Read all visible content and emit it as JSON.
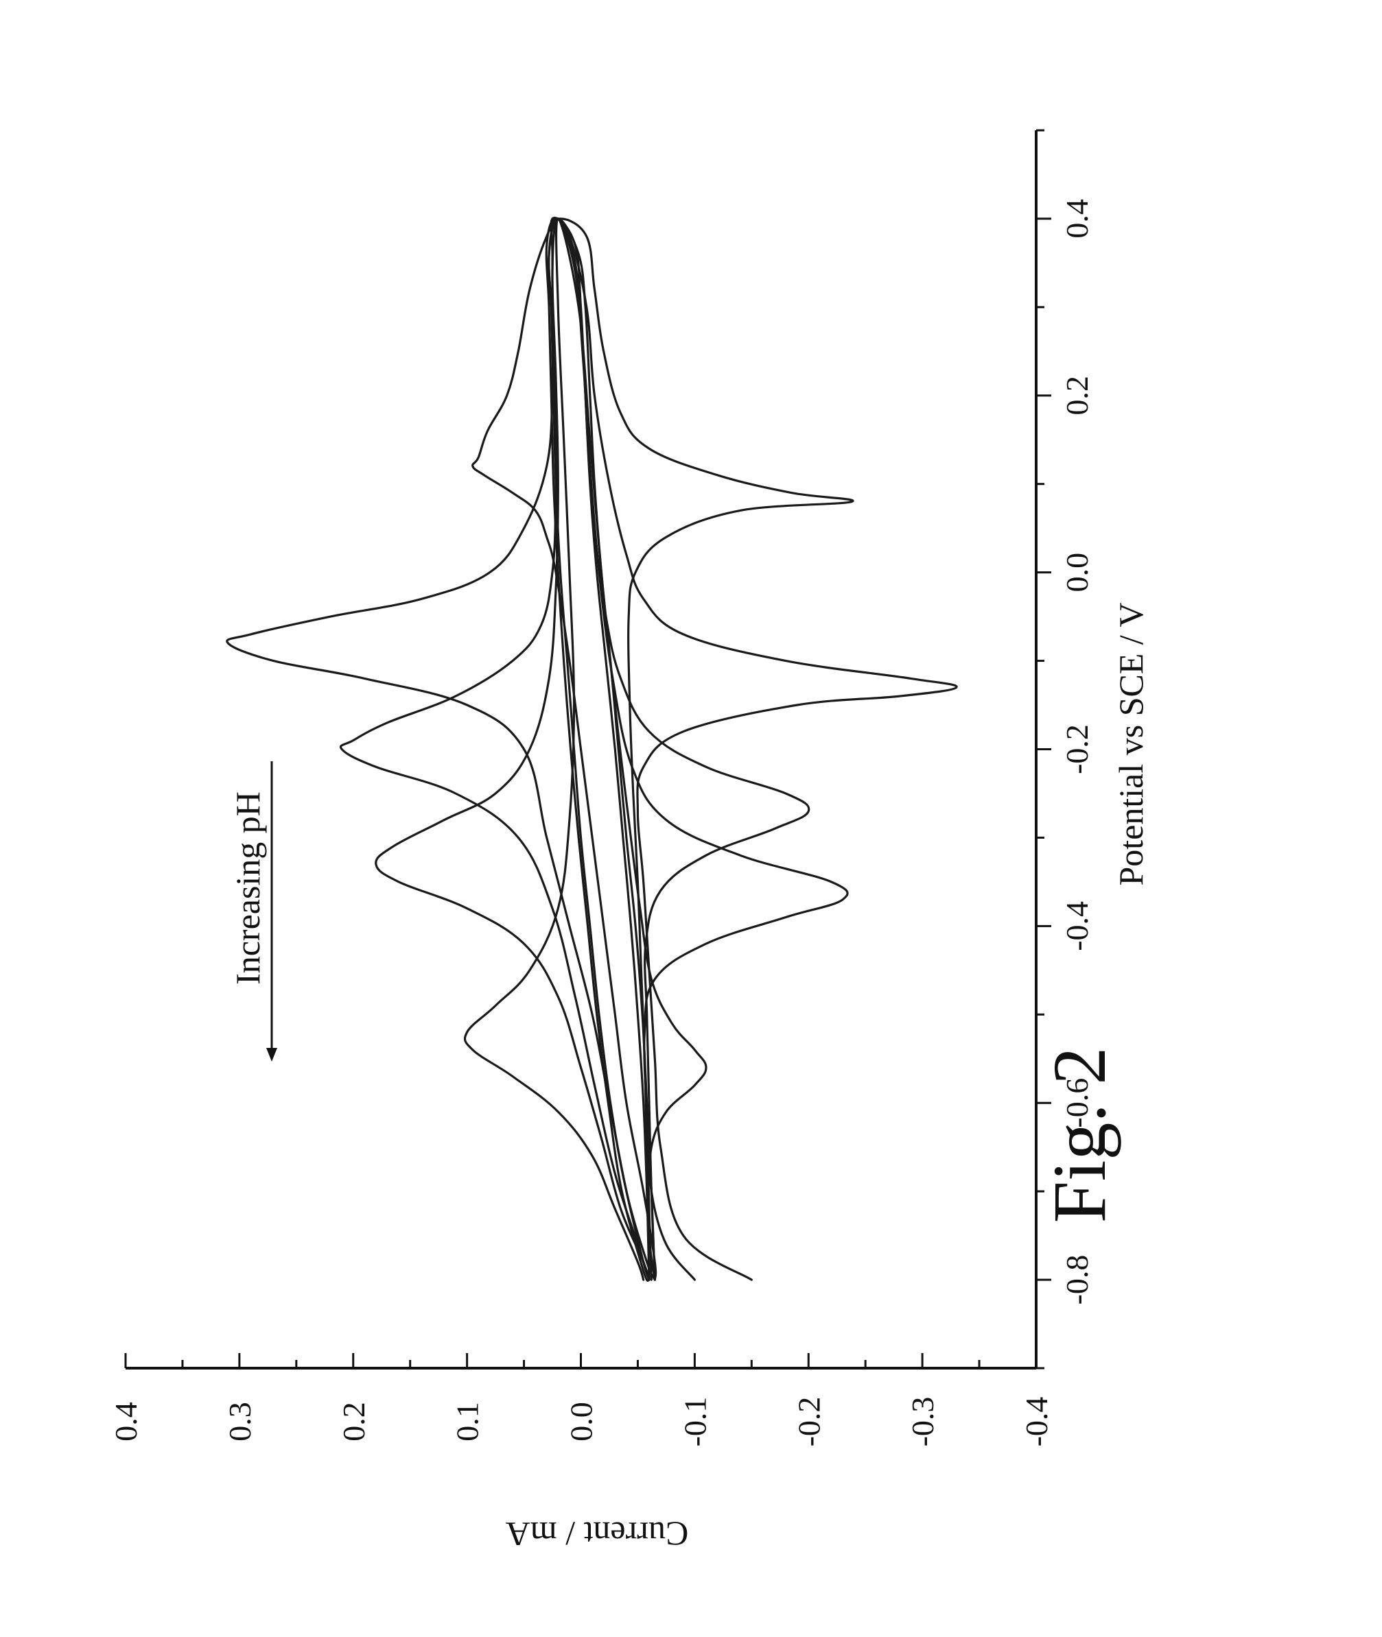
{
  "figure_label": "Fig. 2",
  "chart_data": {
    "type": "line",
    "title": "",
    "xlabel": "Potential vs SCE / V",
    "ylabel": "Current / mA",
    "xlim": [
      -0.9,
      0.5
    ],
    "ylim": [
      -0.4,
      0.4
    ],
    "x_ticks": [
      "-0.8",
      "-0.6",
      "-0.4",
      "-0.2",
      "0.0",
      "0.2",
      "0.4"
    ],
    "y_ticks": [
      "0.4",
      "0.3",
      "0.2",
      "0.1",
      "0.0",
      "-0.1",
      "-0.2",
      "-0.3",
      "-0.4"
    ],
    "grid": false,
    "legend": "none",
    "orientation": "rotated 90° counter-clockwise",
    "annotation": "Increasing pH",
    "series": [
      {
        "cathodic_peak": {
          "x": 0.08,
          "y": -0.238
        },
        "anodic_peak": {
          "x": 0.12,
          "y": 0.095
        },
        "x": [
          -0.8,
          -0.75,
          -0.65,
          -0.55,
          -0.45,
          -0.35,
          -0.25,
          -0.15,
          -0.05,
          0.0,
          0.04,
          0.07,
          0.08,
          0.09,
          0.11,
          0.14,
          0.18,
          0.25,
          0.32,
          0.38,
          0.4,
          0.38,
          0.32,
          0.25,
          0.2,
          0.16,
          0.13,
          0.12,
          0.11,
          0.09,
          0.07,
          0.04,
          0.0,
          -0.1,
          -0.2,
          -0.3,
          -0.4,
          -0.5,
          -0.6,
          -0.7,
          -0.78,
          -0.8
        ],
        "y": [
          -0.065,
          -0.06,
          -0.058,
          -0.056,
          -0.053,
          -0.05,
          -0.046,
          -0.043,
          -0.042,
          -0.048,
          -0.075,
          -0.14,
          -0.238,
          -0.185,
          -0.12,
          -0.06,
          -0.035,
          -0.02,
          -0.012,
          -0.005,
          0.018,
          0.03,
          0.045,
          0.055,
          0.065,
          0.082,
          0.09,
          0.095,
          0.085,
          0.06,
          0.04,
          0.03,
          0.022,
          0.01,
          0.0,
          -0.01,
          -0.02,
          -0.03,
          -0.04,
          -0.055,
          -0.065,
          -0.065
        ]
      },
      {
        "cathodic_peak": {
          "x": -0.13,
          "y": -0.33
        },
        "anodic_peak": {
          "x": -0.08,
          "y": 0.31
        },
        "x": [
          -0.8,
          -0.75,
          -0.65,
          -0.55,
          -0.45,
          -0.35,
          -0.27,
          -0.22,
          -0.18,
          -0.15,
          -0.14,
          -0.13,
          -0.12,
          -0.1,
          -0.07,
          -0.03,
          0.02,
          0.1,
          0.2,
          0.3,
          0.38,
          0.4,
          0.36,
          0.28,
          0.2,
          0.12,
          0.05,
          0.0,
          -0.03,
          -0.05,
          -0.07,
          -0.08,
          -0.1,
          -0.12,
          -0.15,
          -0.2,
          -0.3,
          -0.4,
          -0.5,
          -0.6,
          -0.7,
          -0.78,
          -0.8
        ],
        "y": [
          -0.15,
          -0.09,
          -0.07,
          -0.065,
          -0.06,
          -0.055,
          -0.05,
          -0.055,
          -0.09,
          -0.19,
          -0.28,
          -0.33,
          -0.29,
          -0.18,
          -0.09,
          -0.055,
          -0.04,
          -0.025,
          -0.012,
          -0.005,
          0.01,
          0.025,
          0.025,
          0.025,
          0.025,
          0.03,
          0.05,
          0.08,
          0.14,
          0.22,
          0.29,
          0.31,
          0.27,
          0.19,
          0.1,
          0.05,
          0.03,
          0.01,
          -0.01,
          -0.025,
          -0.04,
          -0.055,
          -0.06
        ]
      },
      {
        "cathodic_peak": {
          "x": -0.27,
          "y": -0.2
        },
        "anodic_peak": {
          "x": -0.2,
          "y": 0.21
        },
        "x": [
          -0.8,
          -0.7,
          -0.6,
          -0.5,
          -0.42,
          -0.36,
          -0.32,
          -0.29,
          -0.27,
          -0.25,
          -0.22,
          -0.18,
          -0.12,
          -0.05,
          0.05,
          0.15,
          0.25,
          0.35,
          0.4,
          0.36,
          0.28,
          0.18,
          0.08,
          0.0,
          -0.06,
          -0.1,
          -0.14,
          -0.17,
          -0.19,
          -0.2,
          -0.22,
          -0.25,
          -0.3,
          -0.38,
          -0.48,
          -0.58,
          -0.68,
          -0.76,
          -0.8
        ],
        "y": [
          -0.065,
          -0.062,
          -0.06,
          -0.058,
          -0.057,
          -0.07,
          -0.11,
          -0.17,
          -0.2,
          -0.18,
          -0.11,
          -0.06,
          -0.035,
          -0.022,
          -0.012,
          -0.006,
          -0.002,
          0.005,
          0.02,
          0.028,
          0.025,
          0.022,
          0.022,
          0.025,
          0.035,
          0.06,
          0.11,
          0.17,
          0.2,
          0.21,
          0.18,
          0.11,
          0.055,
          0.025,
          0.005,
          -0.012,
          -0.03,
          -0.05,
          -0.06
        ]
      },
      {
        "cathodic_peak": {
          "x": -0.37,
          "y": -0.23
        },
        "anodic_peak": {
          "x": -0.33,
          "y": 0.18
        },
        "x": [
          -0.8,
          -0.72,
          -0.62,
          -0.52,
          -0.46,
          -0.42,
          -0.39,
          -0.37,
          -0.35,
          -0.32,
          -0.28,
          -0.22,
          -0.12,
          0.0,
          0.12,
          0.24,
          0.34,
          0.4,
          0.34,
          0.22,
          0.1,
          -0.02,
          -0.12,
          -0.2,
          -0.25,
          -0.28,
          -0.31,
          -0.33,
          -0.35,
          -0.38,
          -0.42,
          -0.48,
          -0.56,
          -0.64,
          -0.72,
          -0.78,
          -0.8
        ],
        "y": [
          -0.062,
          -0.06,
          -0.058,
          -0.056,
          -0.065,
          -0.11,
          -0.18,
          -0.23,
          -0.22,
          -0.14,
          -0.075,
          -0.045,
          -0.028,
          -0.016,
          -0.008,
          -0.002,
          0.005,
          0.02,
          0.025,
          0.022,
          0.02,
          0.022,
          0.028,
          0.045,
          0.075,
          0.12,
          0.165,
          0.18,
          0.16,
          0.1,
          0.05,
          0.02,
          0.0,
          -0.018,
          -0.035,
          -0.055,
          -0.06
        ]
      },
      {
        "cathodic_peak": {
          "x": -0.56,
          "y": -0.11
        },
        "anodic_peak": {
          "x": -0.52,
          "y": 0.1
        },
        "x": [
          -0.8,
          -0.76,
          -0.7,
          -0.65,
          -0.61,
          -0.58,
          -0.56,
          -0.54,
          -0.51,
          -0.46,
          -0.38,
          -0.28,
          -0.15,
          0.0,
          0.15,
          0.3,
          0.4,
          0.3,
          0.15,
          0.0,
          -0.15,
          -0.28,
          -0.38,
          -0.45,
          -0.49,
          -0.52,
          -0.54,
          -0.57,
          -0.61,
          -0.66,
          -0.72,
          -0.78,
          -0.8
        ],
        "y": [
          -0.1,
          -0.075,
          -0.062,
          -0.062,
          -0.075,
          -0.1,
          -0.11,
          -0.1,
          -0.08,
          -0.062,
          -0.052,
          -0.042,
          -0.03,
          -0.018,
          -0.008,
          0.002,
          0.02,
          0.02,
          0.015,
          0.01,
          0.006,
          0.01,
          0.02,
          0.045,
          0.075,
          0.1,
          0.095,
          0.06,
          0.02,
          -0.01,
          -0.03,
          -0.05,
          -0.055
        ]
      },
      {
        "x": [
          -0.8,
          -0.7,
          -0.6,
          -0.5,
          -0.4,
          -0.3,
          -0.2,
          -0.1,
          0.0,
          0.1,
          0.2,
          0.3,
          0.36,
          0.4,
          0.36,
          0.3,
          0.2,
          0.1,
          0.0,
          -0.1,
          -0.2,
          -0.3,
          -0.4,
          -0.5,
          -0.6,
          -0.7,
          -0.78,
          -0.8
        ],
        "y": [
          -0.065,
          -0.062,
          -0.058,
          -0.054,
          -0.048,
          -0.04,
          -0.033,
          -0.026,
          -0.018,
          -0.012,
          -0.008,
          -0.004,
          0.002,
          0.02,
          0.028,
          0.026,
          0.024,
          0.022,
          0.018,
          0.012,
          0.006,
          0.0,
          -0.008,
          -0.016,
          -0.026,
          -0.04,
          -0.058,
          -0.065
        ]
      },
      {
        "x": [
          -0.8,
          -0.7,
          -0.6,
          -0.5,
          -0.4,
          -0.3,
          -0.2,
          -0.1,
          0.0,
          0.1,
          0.2,
          0.3,
          0.37,
          0.4,
          0.37,
          0.3,
          0.2,
          0.1,
          0.0,
          -0.1,
          -0.2,
          -0.3,
          -0.4,
          -0.5,
          -0.6,
          -0.7,
          -0.79,
          -0.8
        ],
        "y": [
          -0.06,
          -0.058,
          -0.055,
          -0.05,
          -0.044,
          -0.037,
          -0.03,
          -0.022,
          -0.014,
          -0.008,
          -0.004,
          0.0,
          0.005,
          0.022,
          0.03,
          0.028,
          0.026,
          0.024,
          0.02,
          0.015,
          0.009,
          0.002,
          -0.006,
          -0.014,
          -0.024,
          -0.036,
          -0.055,
          -0.06
        ]
      }
    ]
  }
}
